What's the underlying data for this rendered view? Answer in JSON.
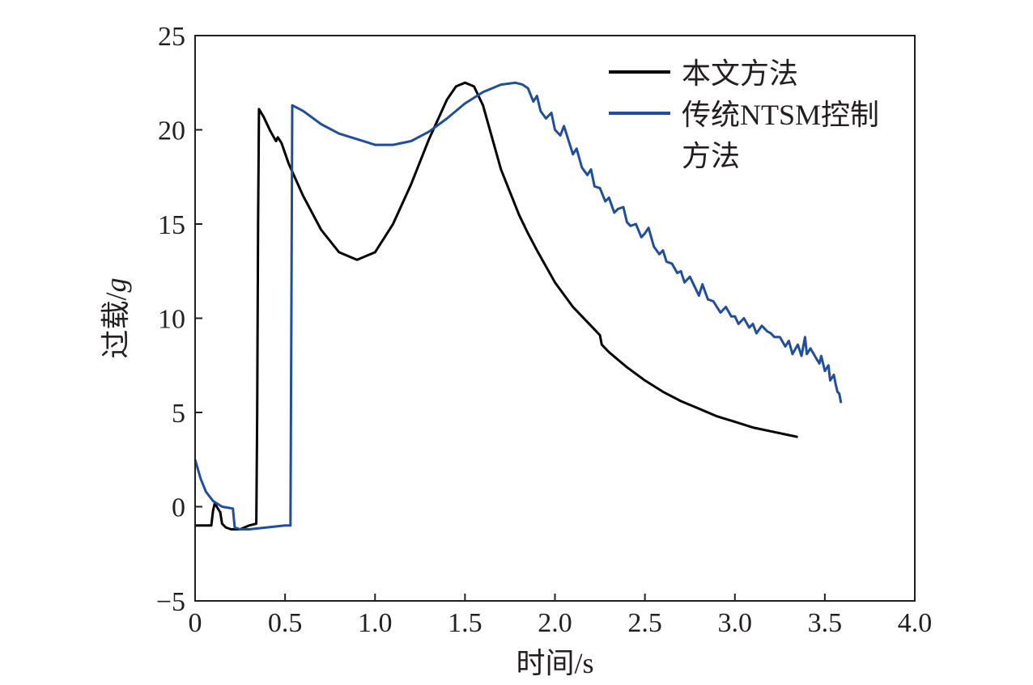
{
  "chart_data": {
    "type": "line",
    "xlabel": "时间/s",
    "ylabel_main": "过载/",
    "ylabel_unit": "g",
    "xlim": [
      0,
      4.0
    ],
    "ylim": [
      -5,
      25
    ],
    "xticks": [
      0,
      0.5,
      1.0,
      1.5,
      2.0,
      2.5,
      3.0,
      3.5,
      4.0
    ],
    "xtick_labels": [
      "0",
      "0.5",
      "1.0",
      "1.5",
      "2.0",
      "2.5",
      "3.0",
      "3.5",
      "4.0"
    ],
    "yticks": [
      -5,
      0,
      5,
      10,
      15,
      20,
      25
    ],
    "ytick_labels": [
      "−5",
      "0",
      "5",
      "10",
      "15",
      "20",
      "25"
    ],
    "grid": false,
    "legend_position": "top-right",
    "legend": {
      "entries": [
        {
          "lines": [
            "本文方法"
          ],
          "color": "#000000"
        },
        {
          "lines": [
            "传统NTSM控制",
            "方法"
          ],
          "color": "#1f4e9c"
        }
      ]
    },
    "series": [
      {
        "name": "本文方法",
        "color": "#000000",
        "points": [
          [
            0.0,
            -1.0
          ],
          [
            0.05,
            -1.0
          ],
          [
            0.09,
            -1.0
          ],
          [
            0.1,
            -0.2
          ],
          [
            0.11,
            0.2
          ],
          [
            0.12,
            0.0
          ],
          [
            0.14,
            -0.3
          ],
          [
            0.15,
            -0.9
          ],
          [
            0.17,
            -1.1
          ],
          [
            0.2,
            -1.2
          ],
          [
            0.25,
            -1.2
          ],
          [
            0.3,
            -1.0
          ],
          [
            0.34,
            -0.9
          ],
          [
            0.345,
            5.0
          ],
          [
            0.35,
            15.0
          ],
          [
            0.355,
            21.1
          ],
          [
            0.38,
            20.7
          ],
          [
            0.42,
            19.9
          ],
          [
            0.45,
            19.4
          ],
          [
            0.46,
            19.6
          ],
          [
            0.48,
            19.3
          ],
          [
            0.52,
            18.2
          ],
          [
            0.6,
            16.5
          ],
          [
            0.7,
            14.7
          ],
          [
            0.8,
            13.5
          ],
          [
            0.9,
            13.1
          ],
          [
            1.0,
            13.5
          ],
          [
            1.1,
            15.0
          ],
          [
            1.2,
            17.1
          ],
          [
            1.3,
            19.5
          ],
          [
            1.4,
            21.6
          ],
          [
            1.45,
            22.3
          ],
          [
            1.5,
            22.5
          ],
          [
            1.55,
            22.3
          ],
          [
            1.6,
            21.3
          ],
          [
            1.65,
            19.6
          ],
          [
            1.7,
            17.9
          ],
          [
            1.8,
            15.5
          ],
          [
            1.85,
            14.5
          ],
          [
            1.9,
            13.6
          ],
          [
            2.0,
            11.9
          ],
          [
            2.1,
            10.6
          ],
          [
            2.2,
            9.6
          ],
          [
            2.25,
            9.1
          ],
          [
            2.26,
            8.6
          ],
          [
            2.3,
            8.2
          ],
          [
            2.4,
            7.4
          ],
          [
            2.5,
            6.7
          ],
          [
            2.6,
            6.1
          ],
          [
            2.7,
            5.6
          ],
          [
            2.8,
            5.2
          ],
          [
            2.9,
            4.8
          ],
          [
            3.0,
            4.5
          ],
          [
            3.1,
            4.2
          ],
          [
            3.2,
            4.0
          ],
          [
            3.3,
            3.8
          ],
          [
            3.35,
            3.7
          ]
        ]
      },
      {
        "name": "传统NTSM控制方法",
        "color": "#1f4e9c",
        "points": [
          [
            0.0,
            2.5
          ],
          [
            0.03,
            1.5
          ],
          [
            0.06,
            0.8
          ],
          [
            0.1,
            0.3
          ],
          [
            0.15,
            0.0
          ],
          [
            0.21,
            -0.1
          ],
          [
            0.22,
            -1.1
          ],
          [
            0.25,
            -1.2
          ],
          [
            0.3,
            -1.2
          ],
          [
            0.4,
            -1.1
          ],
          [
            0.5,
            -1.0
          ],
          [
            0.53,
            -1.0
          ],
          [
            0.535,
            10.0
          ],
          [
            0.54,
            21.3
          ],
          [
            0.6,
            21.0
          ],
          [
            0.7,
            20.3
          ],
          [
            0.8,
            19.8
          ],
          [
            0.9,
            19.5
          ],
          [
            1.0,
            19.2
          ],
          [
            1.1,
            19.2
          ],
          [
            1.2,
            19.4
          ],
          [
            1.3,
            19.9
          ],
          [
            1.4,
            20.6
          ],
          [
            1.5,
            21.4
          ],
          [
            1.6,
            22.0
          ],
          [
            1.7,
            22.4
          ],
          [
            1.78,
            22.5
          ],
          [
            1.82,
            22.4
          ],
          [
            1.85,
            22.2
          ],
          [
            1.88,
            21.5
          ],
          [
            1.9,
            21.8
          ],
          [
            1.92,
            21.0
          ],
          [
            1.95,
            20.6
          ],
          [
            1.98,
            20.9
          ],
          [
            2.0,
            20.0
          ],
          [
            2.03,
            19.7
          ],
          [
            2.05,
            20.2
          ],
          [
            2.08,
            19.3
          ],
          [
            2.1,
            18.7
          ],
          [
            2.12,
            19.0
          ],
          [
            2.15,
            18.0
          ],
          [
            2.18,
            17.6
          ],
          [
            2.2,
            17.9
          ],
          [
            2.22,
            17.0
          ],
          [
            2.25,
            16.9
          ],
          [
            2.28,
            16.2
          ],
          [
            2.3,
            16.4
          ],
          [
            2.33,
            15.6
          ],
          [
            2.35,
            15.8
          ],
          [
            2.38,
            15.9
          ],
          [
            2.4,
            15.1
          ],
          [
            2.42,
            14.9
          ],
          [
            2.45,
            15.0
          ],
          [
            2.48,
            14.3
          ],
          [
            2.5,
            14.5
          ],
          [
            2.52,
            14.8
          ],
          [
            2.55,
            13.8
          ],
          [
            2.58,
            13.4
          ],
          [
            2.6,
            13.6
          ],
          [
            2.62,
            13.0
          ],
          [
            2.65,
            12.9
          ],
          [
            2.68,
            12.4
          ],
          [
            2.7,
            12.5
          ],
          [
            2.72,
            11.9
          ],
          [
            2.75,
            12.2
          ],
          [
            2.78,
            11.6
          ],
          [
            2.8,
            11.2
          ],
          [
            2.82,
            11.8
          ],
          [
            2.85,
            11.0
          ],
          [
            2.88,
            10.9
          ],
          [
            2.9,
            10.6
          ],
          [
            2.92,
            10.3
          ],
          [
            2.95,
            10.6
          ],
          [
            2.98,
            10.1
          ],
          [
            3.0,
            10.1
          ],
          [
            3.02,
            9.7
          ],
          [
            3.05,
            10.0
          ],
          [
            3.08,
            9.5
          ],
          [
            3.1,
            9.7
          ],
          [
            3.12,
            9.2
          ],
          [
            3.15,
            9.6
          ],
          [
            3.18,
            9.3
          ],
          [
            3.2,
            9.2
          ],
          [
            3.22,
            9.0
          ],
          [
            3.25,
            9.0
          ],
          [
            3.28,
            8.5
          ],
          [
            3.3,
            8.8
          ],
          [
            3.32,
            8.1
          ],
          [
            3.35,
            8.6
          ],
          [
            3.37,
            8.0
          ],
          [
            3.39,
            9.0
          ],
          [
            3.4,
            8.1
          ],
          [
            3.42,
            8.4
          ],
          [
            3.45,
            7.9
          ],
          [
            3.47,
            7.6
          ],
          [
            3.48,
            8.0
          ],
          [
            3.5,
            7.2
          ],
          [
            3.52,
            7.5
          ],
          [
            3.53,
            6.7
          ],
          [
            3.55,
            7.0
          ],
          [
            3.56,
            6.5
          ],
          [
            3.57,
            6.1
          ],
          [
            3.58,
            6.0
          ],
          [
            3.59,
            5.5
          ]
        ]
      }
    ]
  }
}
